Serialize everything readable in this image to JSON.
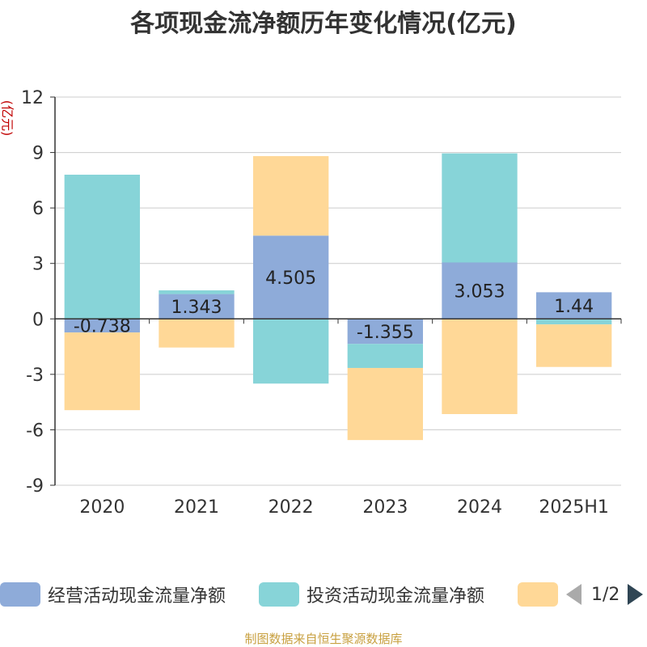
{
  "title": "各项现金流净额历年变化情况(亿元)",
  "y_unit": "(亿元)",
  "source": "制图数据来自恒生聚源数据库",
  "legend_pager": "1/2",
  "chart_data": {
    "type": "bar",
    "stacked": true,
    "categories": [
      "2020",
      "2021",
      "2022",
      "2023",
      "2024",
      "2025H1"
    ],
    "series": [
      {
        "name": "经营活动现金流量净额",
        "color": "#8eabd9",
        "values": [
          -0.738,
          1.343,
          4.505,
          -1.355,
          3.053,
          1.44
        ],
        "labels": true
      },
      {
        "name": "投资活动现金流量净额",
        "color": "#87d4d8",
        "values": [
          7.8,
          0.2,
          -3.5,
          -1.3,
          5.9,
          -0.3
        ],
        "labels": false
      },
      {
        "name": "",
        "color": "#ffd897",
        "values": [
          -4.2,
          -1.55,
          4.3,
          -3.9,
          -5.15,
          -2.3
        ],
        "labels": false
      }
    ],
    "ylim": [
      -9,
      12
    ],
    "yticks": [
      -9,
      -6,
      -3,
      0,
      3,
      6,
      9,
      12
    ],
    "grid": true,
    "legend_position": "bottom"
  }
}
